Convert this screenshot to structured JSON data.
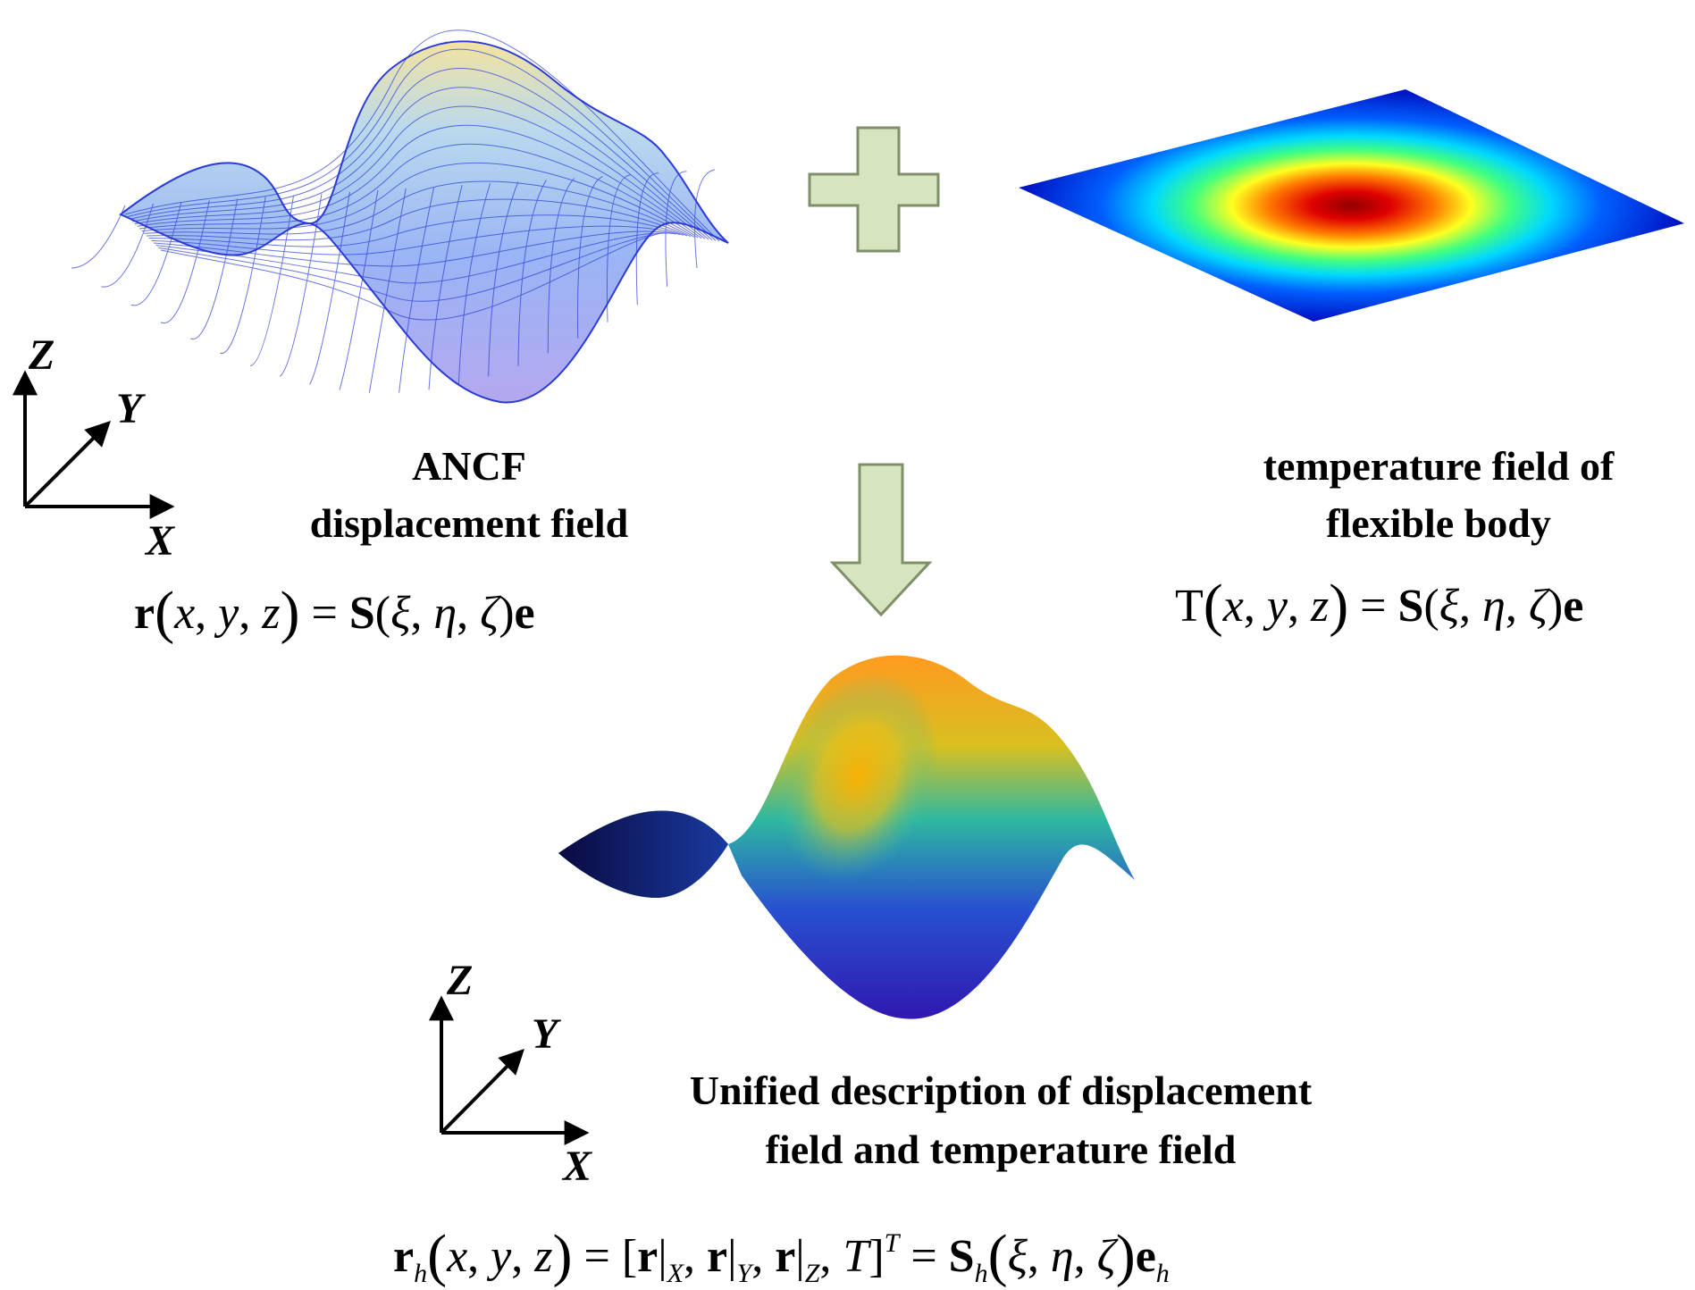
{
  "labels": {
    "ancf_line1": "ANCF",
    "ancf_line2": "displacement field",
    "temp_line1": "temperature field of",
    "temp_line2": "flexible body",
    "unified_line1": "Unified description of displacement",
    "unified_line2": "field and temperature field"
  },
  "axes": {
    "z": "Z",
    "y": "Y",
    "x": "X"
  },
  "equations": {
    "r": "r",
    "S": "S",
    "e": "e",
    "T": "T",
    "h": "h",
    "x": "x",
    "y": "y",
    "z": "z",
    "xi": "ξ",
    "eta": "η",
    "zeta": "ζ",
    "sub_X": "X",
    "sub_Y": "Y",
    "sub_Z": "Z",
    "sup_T": "T"
  },
  "colors": {
    "arrow_fill": "#d6e4c0",
    "arrow_stroke": "#7f8f6a",
    "mesh_line": "#2a3bd8",
    "hot": "#c00000",
    "cold": "#0018c8"
  }
}
